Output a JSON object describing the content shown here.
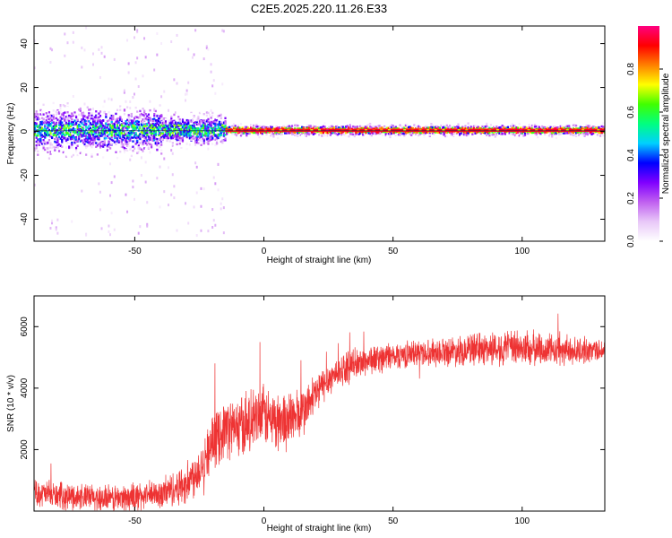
{
  "figure": {
    "title": "C2E5.2025.220.11.26.E33"
  },
  "chart_data": [
    {
      "type": "heatmap",
      "xlabel": "Height of straight line (km)",
      "ylabel": "Frequency (Hz)",
      "xlim": [
        -89,
        132
      ],
      "ylim": [
        -50,
        48
      ],
      "xticks": [
        -50,
        0,
        50,
        100
      ],
      "yticks": [
        -40,
        -20,
        0,
        20,
        40
      ],
      "grid": false,
      "description_of_values": "Spectral energy concentrated around 0 to 1 Hz; broad noisy spread (roughly -20 to +20 Hz) for heights below about -15 km; narrow strong line near 0.5 Hz above about -15 km.",
      "colorbar": {
        "label": "Normalized spectral amplitude",
        "range": [
          0,
          1
        ],
        "ticks": [
          0.0,
          0.2,
          0.4,
          0.6,
          0.8
        ],
        "colors": [
          "#ffffff",
          "#e8c8f8",
          "#c060f0",
          "#8000ff",
          "#0000ff",
          "#00d0ff",
          "#00ff80",
          "#40ff00",
          "#ffff00",
          "#ff8000",
          "#ff0000",
          "#ff0080"
        ]
      }
    },
    {
      "type": "line",
      "xlabel": "Height of straight line (km)",
      "ylabel": "SNR (10 * v/v)",
      "xlim": [
        -89,
        132
      ],
      "ylim": [
        0,
        7000
      ],
      "xticks": [
        -50,
        0,
        50,
        100
      ],
      "yticks": [
        2000,
        4000,
        6000
      ],
      "grid": false,
      "line_color": "#ee3333",
      "series_trend": {
        "x": [
          -89,
          -80,
          -70,
          -60,
          -50,
          -40,
          -30,
          -25,
          -20,
          -15,
          -10,
          -5,
          0,
          5,
          10,
          15,
          20,
          25,
          30,
          40,
          50,
          60,
          70,
          80,
          90,
          100,
          110,
          120,
          132
        ],
        "y": [
          600,
          500,
          450,
          400,
          450,
          550,
          900,
          1400,
          2200,
          2700,
          2700,
          2900,
          3100,
          2900,
          3000,
          3200,
          3800,
          4300,
          4600,
          4900,
          5050,
          5150,
          5200,
          5250,
          5300,
          5300,
          5250,
          5200,
          5250
        ]
      },
      "noise_amplitude": {
        "x": [
          -89,
          -40,
          -25,
          -10,
          10,
          25,
          60,
          85,
          100,
          132
        ],
        "y": [
          700,
          800,
          1300,
          1700,
          1600,
          900,
          700,
          900,
          1000,
          600
        ]
      }
    }
  ]
}
